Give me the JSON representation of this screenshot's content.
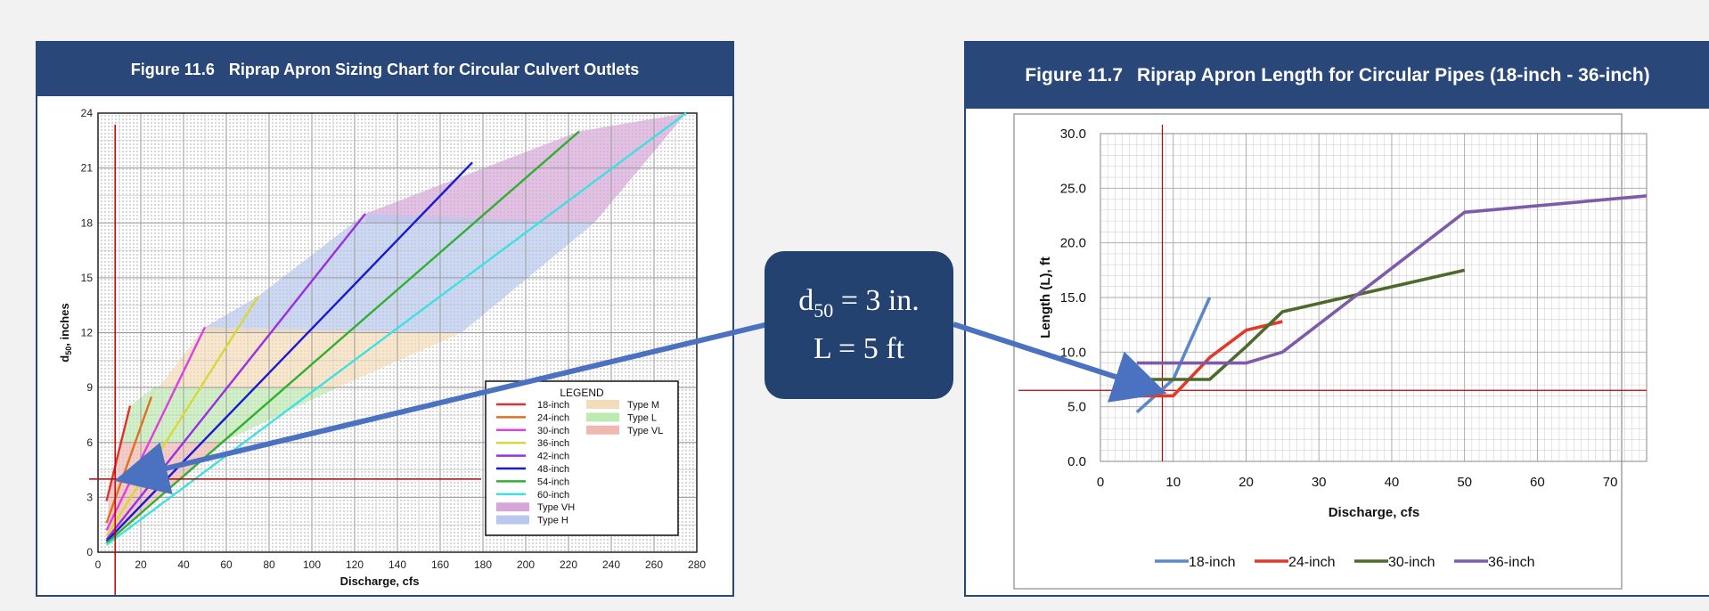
{
  "left_panel": {
    "figure_number": "Figure 11.6",
    "figure_title": "Riprap Apron Sizing Chart for Circular Culvert Outlets"
  },
  "right_panel": {
    "figure_number": "Figure 11.7",
    "figure_title": "Riprap Apron Length for Circular Pipes (18-inch - 36-inch)"
  },
  "callout": {
    "line1_prefix": "d",
    "line1_sub": "50",
    "line1_suffix": " = 3 in.",
    "line2": "L = 5 ft"
  },
  "colors": {
    "header_bg": "#2a477a",
    "callout_bg": "#24426f",
    "arrow": "#4a72c0",
    "ref_line": "#c00000"
  },
  "chart_data": [
    {
      "type": "line",
      "title": "Riprap Apron Sizing Chart for Circular Culvert Outlets",
      "xlabel": "Discharge, cfs",
      "ylabel": "d50, inches",
      "xlim": [
        0,
        280
      ],
      "ylim": [
        0,
        24
      ],
      "xticks": [
        0,
        20,
        40,
        60,
        80,
        100,
        120,
        140,
        160,
        180,
        200,
        220,
        240,
        260,
        280
      ],
      "yticks": [
        0,
        3,
        6,
        9,
        12,
        15,
        18,
        21,
        24
      ],
      "grid": true,
      "legend_title": "LEGEND",
      "legend_placement": "bottom-right",
      "series": [
        {
          "name": "18-inch",
          "color": "#e03030",
          "points": [
            [
              4,
              2.8
            ],
            [
              15,
              8
            ]
          ]
        },
        {
          "name": "24-inch",
          "color": "#e07020",
          "points": [
            [
              4,
              1.6
            ],
            [
              25,
              8.5
            ]
          ]
        },
        {
          "name": "30-inch",
          "color": "#e040e0",
          "points": [
            [
              4,
              1.2
            ],
            [
              50,
              12.3
            ]
          ]
        },
        {
          "name": "36-inch",
          "color": "#d8d838",
          "points": [
            [
              4,
              0.9
            ],
            [
              75,
              14
            ]
          ]
        },
        {
          "name": "42-inch",
          "color": "#9a30e0",
          "points": [
            [
              4,
              0.7
            ],
            [
              125,
              18.5
            ]
          ]
        },
        {
          "name": "48-inch",
          "color": "#1a1ad0",
          "points": [
            [
              4,
              0.6
            ],
            [
              175,
              21.3
            ]
          ]
        },
        {
          "name": "54-inch",
          "color": "#30b030",
          "points": [
            [
              4,
              0.5
            ],
            [
              225,
              23
            ]
          ]
        },
        {
          "name": "60-inch",
          "color": "#40e0e0",
          "points": [
            [
              4,
              0.4
            ],
            [
              275,
              24
            ]
          ]
        }
      ],
      "zones": [
        {
          "name": "Type VH",
          "color": "#d6a6d8",
          "points": [
            [
              125,
              18.5
            ],
            [
              225,
              23
            ],
            [
              275,
              24
            ],
            [
              232,
              18
            ],
            [
              125,
              18
            ]
          ]
        },
        {
          "name": "Type H",
          "color": "#b8c8ee",
          "points": [
            [
              50,
              12
            ],
            [
              50,
              12.3
            ],
            [
              75,
              14
            ],
            [
              125,
              18.5
            ],
            [
              232,
              18
            ],
            [
              170,
              12
            ]
          ]
        },
        {
          "name": "Type M",
          "color": "#f5dcb8",
          "points": [
            [
              25,
              8.5
            ],
            [
              50,
              12.3
            ],
            [
              170,
              12
            ],
            [
              112,
              9
            ],
            [
              26,
              9
            ]
          ]
        },
        {
          "name": "Type L",
          "color": "#bdeab0",
          "points": [
            [
              15,
              8
            ],
            [
              26,
              9
            ],
            [
              112,
              9
            ],
            [
              58,
              6
            ],
            [
              10,
              6
            ]
          ]
        },
        {
          "name": "Type VL",
          "color": "#f0b8b0",
          "points": [
            [
              5,
              3
            ],
            [
              10,
              6
            ],
            [
              58,
              6
            ],
            [
              4,
              0.4
            ]
          ]
        }
      ],
      "reference_lines": {
        "x": 8,
        "y": 4,
        "color": "#c00000"
      }
    },
    {
      "type": "line",
      "title": "Riprap Apron Length for Circular Pipes (18-inch - 36-inch)",
      "xlabel": "Discharge, cfs",
      "ylabel": "Length (L), ft",
      "xlim": [
        0,
        75
      ],
      "ylim": [
        0,
        30
      ],
      "xticks": [
        0,
        10,
        20,
        30,
        40,
        50,
        60,
        70
      ],
      "yticks": [
        "0.0",
        "5.0",
        "10.0",
        "15.0",
        "20.0",
        "25.0",
        "30.0"
      ],
      "grid": true,
      "legend_placement": "bottom",
      "series": [
        {
          "name": "18-inch",
          "color": "#5b88c8",
          "x": [
            5,
            10,
            15
          ],
          "y": [
            4.5,
            7.5,
            15
          ]
        },
        {
          "name": "24-inch",
          "color": "#e03a2a",
          "x": [
            5,
            10,
            15,
            20,
            25
          ],
          "y": [
            6,
            6,
            9.5,
            12,
            12.8
          ]
        },
        {
          "name": "30-inch",
          "color": "#4d6a2c",
          "x": [
            5,
            15,
            20,
            25,
            50
          ],
          "y": [
            7.5,
            7.5,
            10.5,
            13.7,
            17.5
          ]
        },
        {
          "name": "36-inch",
          "color": "#7d5ba8",
          "x": [
            5,
            20,
            25,
            50,
            75
          ],
          "y": [
            9,
            9,
            10,
            22.8,
            24.3
          ]
        }
      ],
      "reference_lines": {
        "x": 8.5,
        "y": 6.5,
        "color": "#c00000"
      }
    }
  ]
}
